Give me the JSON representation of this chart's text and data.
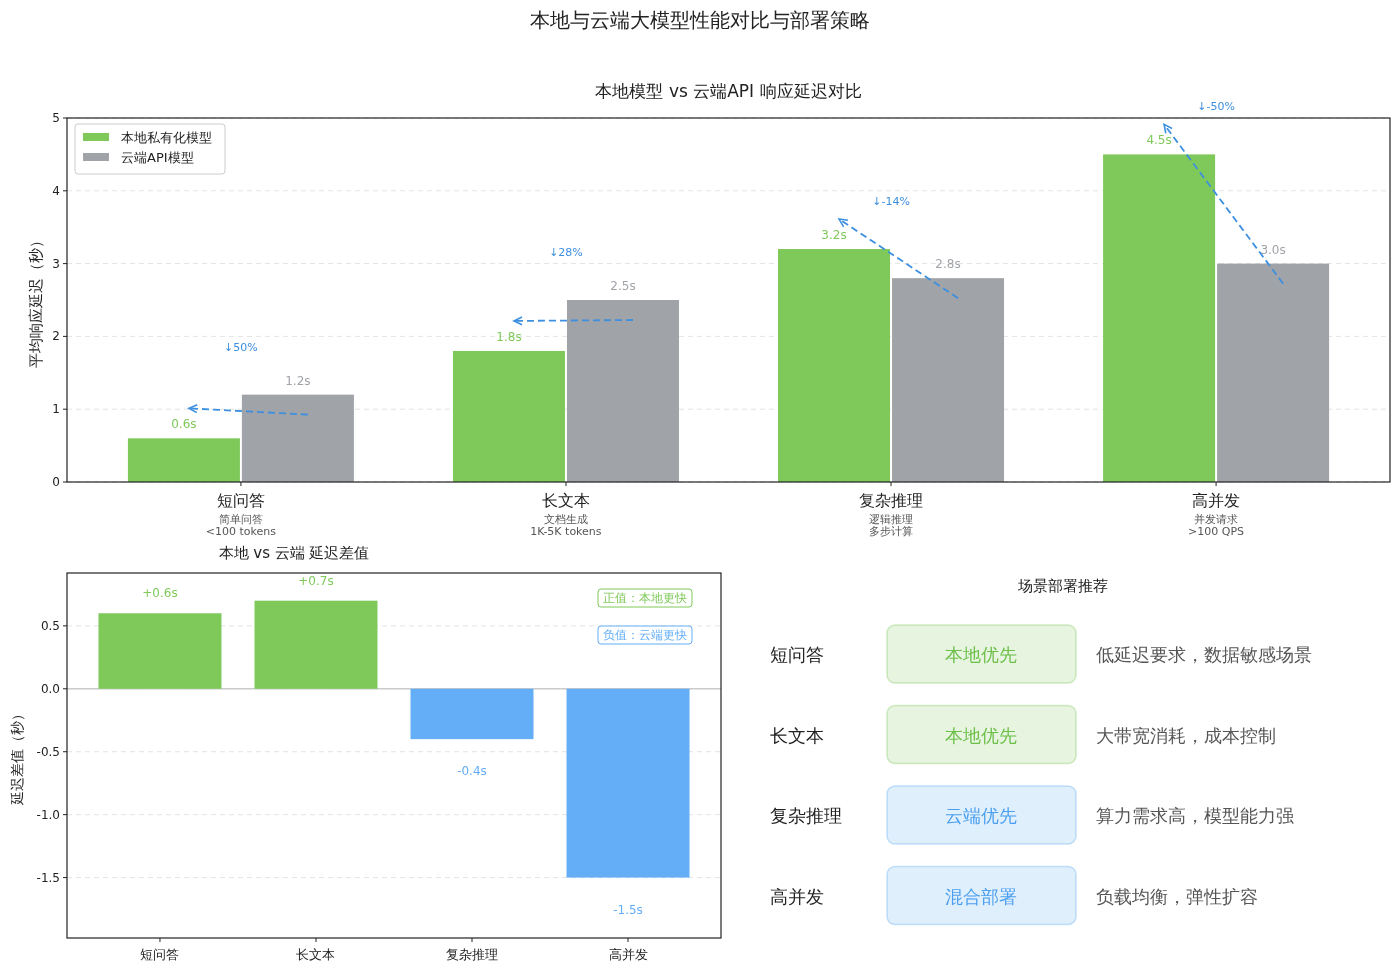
{
  "chart_data": [
    {
      "type": "bar",
      "title": "本地与云端大模型性能对比与部署策略",
      "subtitle": "本地模型 vs 云端API 响应延迟对比",
      "ylabel": "平均响应延迟（秒）",
      "categories": [
        "短问答",
        "长文本",
        "复杂推理",
        "高并发"
      ],
      "series": [
        {
          "name": "本地私有化模型",
          "color": "#7ec95a",
          "values": [
            0.6,
            1.8,
            3.2,
            4.5
          ],
          "value_labels": [
            "0.6s",
            "1.8s",
            "3.2s",
            "4.5s"
          ]
        },
        {
          "name": "云端API模型",
          "color": "#a0a3a8",
          "values": [
            1.2,
            2.5,
            2.8,
            3.0
          ],
          "value_labels": [
            "1.2s",
            "2.5s",
            "2.8s",
            "3.0s"
          ]
        }
      ],
      "ylim": [
        0,
        5
      ],
      "yticks": [
        0,
        1,
        2,
        3,
        4,
        5
      ],
      "grid": "y",
      "legend": "top left",
      "annotations": [
        "简单问答",
        "<100 tokens",
        "文档生成",
        "1K-5K tokens",
        "逻辑推理",
        "多步计算",
        "并发请求",
        ">100 QPS",
        "↓50%",
        "↓28%",
        "↓-14%",
        "↓-50%"
      ]
    },
    {
      "type": "bar",
      "title": "本地 vs 云端 延迟差值",
      "ylabel": "延迟差值（秒）",
      "categories": [
        "短问答",
        "长文本",
        "复杂推理",
        "高并发"
      ],
      "values": [
        0.6,
        0.7,
        -0.4,
        -1.5
      ],
      "colors": [
        "#7ec95a",
        "#7ec95a",
        "#63aef7",
        "#63aef7"
      ],
      "value_labels": [
        "+0.6s",
        "+0.7s",
        "-0.4s",
        "-1.5s"
      ],
      "ylim": [
        -1.98,
        0.92
      ],
      "yticks": [
        -1.5,
        {
          "value": -1,
          "label": "-1.0"
        },
        -0.5,
        {
          "value": 0,
          "label": "0.0"
        },
        0.5
      ],
      "grid": "y",
      "ref_lines": [
        {
          "axis": "y",
          "value": 0,
          "color": "#cccccc"
        }
      ],
      "annotations": [
        "正值：本地更快",
        "负值：云端更快"
      ]
    },
    {
      "type": "other",
      "title": "场景部署推荐",
      "categories": [
        "短问答",
        "长文本",
        "复杂推理",
        "高并发"
      ],
      "colors": [
        "#6cbf47",
        "#6cbf47",
        "#4a9ff0",
        "#4a9ff0"
      ],
      "annotations": [
        "本地优先",
        "低延迟要求，数据敏感场景",
        "本地优先",
        "大带宽消耗，成本控制",
        "云端优先",
        "算力需求高，模型能力强",
        "混合部署",
        "负载均衡，弹性扩容"
      ]
    }
  ]
}
